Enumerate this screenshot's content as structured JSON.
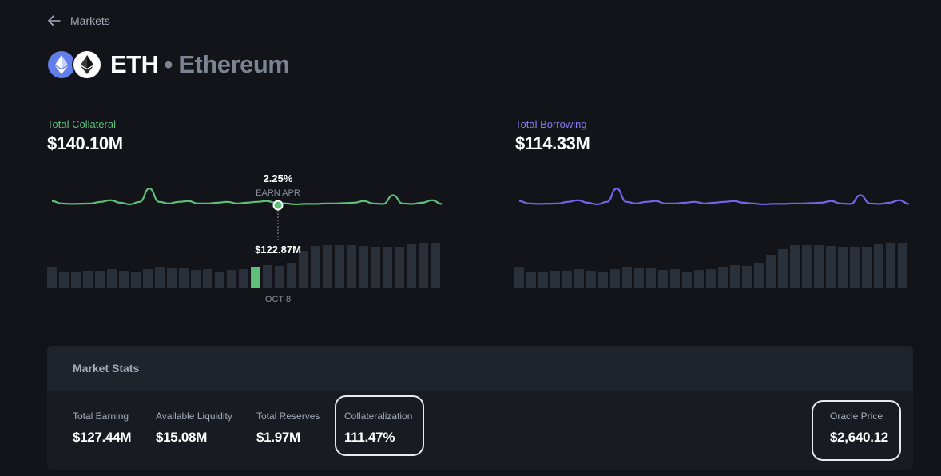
{
  "nav": {
    "back_label": "Markets"
  },
  "asset": {
    "symbol": "ETH",
    "separator": "•",
    "name": "Ethereum"
  },
  "collateral": {
    "label": "Total Collateral",
    "value": "$140.10M",
    "color": "#5fbf7a"
  },
  "borrowing": {
    "label": "Total Borrowing",
    "value": "$114.33M",
    "color": "#7b61e8"
  },
  "tooltip": {
    "apr_value": "2.25%",
    "apr_label": "EARN APR",
    "bar_value": "$122.87M",
    "date": "OCT 8"
  },
  "chart_data": [
    {
      "type": "bar",
      "title": "",
      "line_series": [
        0.62,
        0.56,
        0.55,
        0.555,
        0.56,
        0.6,
        0.64,
        0.58,
        0.54,
        0.6,
        0.92,
        0.6,
        0.56,
        0.6,
        0.62,
        0.56,
        0.56,
        0.58,
        0.6,
        0.56,
        0.58,
        0.6,
        0.62,
        0.58,
        0.56,
        0.54,
        0.55,
        0.55,
        0.56,
        0.56,
        0.57,
        0.58,
        0.62,
        0.56,
        0.55,
        0.76,
        0.56,
        0.55,
        0.58,
        0.64,
        0.55
      ],
      "bar_values": [
        27,
        20,
        21,
        22,
        22,
        24,
        22,
        20,
        24,
        27,
        26,
        26,
        23,
        24,
        20,
        23,
        24,
        27,
        29,
        28,
        32,
        47,
        53,
        54,
        54,
        54,
        53,
        52,
        52,
        52,
        56,
        57,
        57
      ],
      "highlight_index": 17,
      "line_color": "#5fbf7a",
      "bar_color": "#2a3039",
      "highlight_color": "#5fbf7a"
    },
    {
      "type": "bar",
      "title": "",
      "line_series": [
        0.62,
        0.56,
        0.55,
        0.555,
        0.56,
        0.6,
        0.64,
        0.58,
        0.54,
        0.6,
        0.92,
        0.6,
        0.56,
        0.6,
        0.62,
        0.56,
        0.56,
        0.58,
        0.6,
        0.56,
        0.58,
        0.6,
        0.62,
        0.58,
        0.56,
        0.54,
        0.55,
        0.55,
        0.56,
        0.56,
        0.57,
        0.58,
        0.62,
        0.56,
        0.55,
        0.76,
        0.56,
        0.55,
        0.58,
        0.64,
        0.55
      ],
      "bar_values": [
        27,
        20,
        21,
        22,
        22,
        24,
        22,
        20,
        24,
        27,
        26,
        26,
        23,
        24,
        20,
        23,
        24,
        27,
        29,
        28,
        32,
        42,
        49,
        54,
        54,
        54,
        53,
        52,
        52,
        52,
        56,
        57,
        57
      ],
      "highlight_index": -1,
      "line_color": "#7b61e8",
      "bar_color": "#2a3039",
      "highlight_color": "#7b61e8"
    }
  ],
  "stats": {
    "title": "Market Stats",
    "items": [
      {
        "label": "Total Earning",
        "value": "$127.44M"
      },
      {
        "label": "Available Liquidity",
        "value": "$15.08M"
      },
      {
        "label": "Total Reserves",
        "value": "$1.97M"
      },
      {
        "label": "Collateralization",
        "value": "111.47%"
      },
      {
        "label": "Oracle Price",
        "value": "$2,640.12"
      }
    ]
  }
}
